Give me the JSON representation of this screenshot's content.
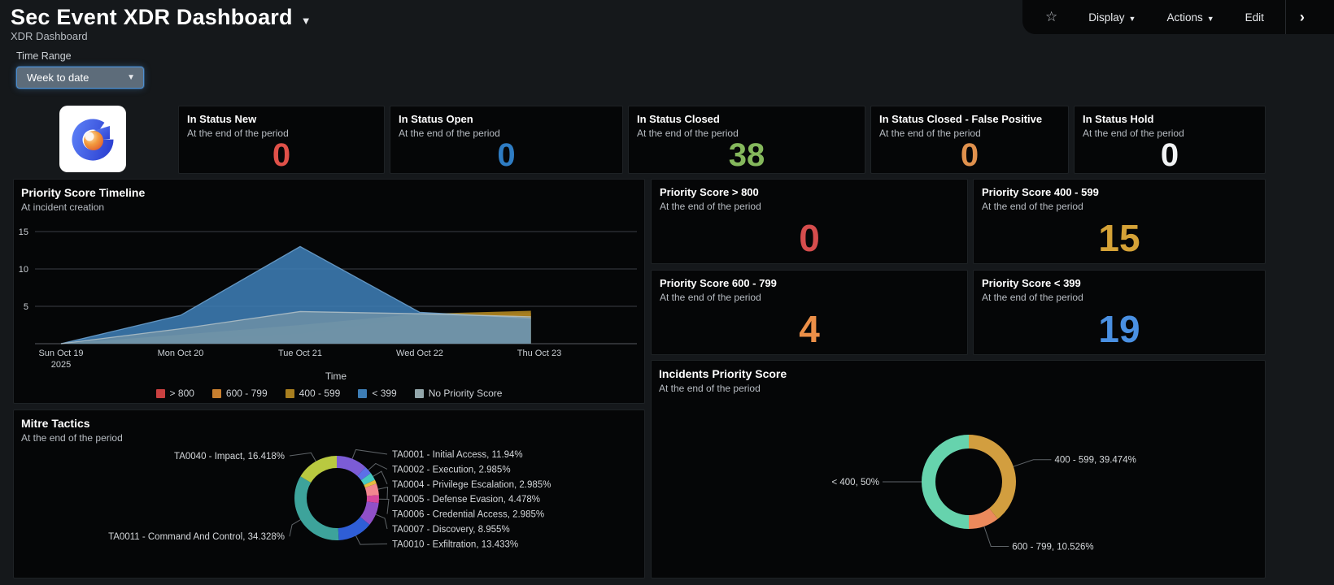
{
  "header": {
    "title": "Sec Event XDR Dashboard",
    "subtitle": "XDR Dashboard",
    "toolbar": {
      "display": "Display",
      "actions": "Actions",
      "edit": "Edit"
    }
  },
  "filters": {
    "time_range_label": "Time Range",
    "time_range_value": "Week to date"
  },
  "colors": {
    "accent_blue": "#4e8fd0",
    "panel_bg": "#050607",
    "page_bg": "#15181b"
  },
  "status_cards": [
    {
      "title": "In Status New",
      "subtitle": "At the end of the period",
      "value": "0",
      "color": "#e05149"
    },
    {
      "title": "In Status Open",
      "subtitle": "At the end of the period",
      "value": "0",
      "color": "#2e7cc3"
    },
    {
      "title": "In Status Closed",
      "subtitle": "At the end of the period",
      "value": "38",
      "color": "#85b85c"
    },
    {
      "title": "In Status Closed - False Positive",
      "subtitle": "At the end of the period",
      "value": "0",
      "color": "#e0914d"
    },
    {
      "title": "In Status Hold",
      "subtitle": "At the end of the period",
      "value": "0",
      "color": "#f1f3f4"
    }
  ],
  "priority_cards": [
    {
      "title": "Priority Score > 800",
      "subtitle": "At the end of the period",
      "value": "0",
      "color": "#d64d4d"
    },
    {
      "title": "Priority Score 400 - 599",
      "subtitle": "At the end of the period",
      "value": "15",
      "color": "#d5a237"
    },
    {
      "title": "Priority Score 600 - 799",
      "subtitle": "At the end of the period",
      "value": "4",
      "color": "#ec8f48"
    },
    {
      "title": "Priority Score < 399",
      "subtitle": "At the end of the period",
      "value": "19",
      "color": "#4a90e2"
    }
  ],
  "chart_data": [
    {
      "type": "area",
      "title": "Priority Score Timeline",
      "subtitle": "At incident creation",
      "xlabel": "Time",
      "x_ticks": [
        "Sun Oct 19",
        "Mon Oct 20",
        "Tue Oct 21",
        "Wed Oct 22",
        "Thu Oct 23"
      ],
      "x_tick_sub": "2025",
      "y_ticks": [
        5,
        10,
        15
      ],
      "ylim": [
        0,
        16
      ],
      "grid": true,
      "legend_position": "bottom",
      "series": [
        {
          "name": "> 800",
          "color": "#c94040",
          "fill_opacity": 0.9,
          "stroke": "",
          "points": [
            [
              0,
              0
            ],
            [
              1,
              0
            ],
            [
              2,
              0
            ],
            [
              3,
              0
            ],
            [
              3.93,
              0
            ]
          ]
        },
        {
          "name": "600 - 799",
          "color": "#c87f2f",
          "fill_opacity": 0.95,
          "stroke": "",
          "points": [
            [
              0,
              0
            ],
            [
              1,
              0.6
            ],
            [
              2,
              1.3
            ],
            [
              3,
              3.6
            ],
            [
              3.93,
              4.1
            ]
          ]
        },
        {
          "name": "400 - 599",
          "color": "#a87f1f",
          "fill_opacity": 0.95,
          "stroke": "",
          "points": [
            [
              0,
              0
            ],
            [
              1,
              1.2
            ],
            [
              2,
              2.5
            ],
            [
              3,
              4.0
            ],
            [
              3.93,
              4.4
            ]
          ]
        },
        {
          "name": "< 399",
          "color": "#3d7db5",
          "fill_opacity": 0.88,
          "stroke": "#74aad8",
          "points": [
            [
              0,
              0
            ],
            [
              1,
              3.8
            ],
            [
              2,
              13
            ],
            [
              3,
              4.2
            ],
            [
              3.93,
              3.4
            ]
          ]
        },
        {
          "name": "No Priority Score",
          "color": "#93a7ab",
          "fill_opacity": 0.5,
          "stroke": "#b9c6c9",
          "points": [
            [
              0,
              0
            ],
            [
              1,
              2.0
            ],
            [
              2,
              4.3
            ],
            [
              3,
              4.0
            ],
            [
              3.93,
              3.6
            ]
          ]
        }
      ]
    },
    {
      "type": "donut",
      "title": "Incidents Priority Score",
      "subtitle": "At the end of the period",
      "label_layout": "radial",
      "slices": [
        {
          "label": "400 - 599, 39.474%",
          "value": 39.474,
          "color": "#d29e3f"
        },
        {
          "label": "600 - 799, 10.526%",
          "value": 10.526,
          "color": "#ec8a5c"
        },
        {
          "label": "< 400, 50%",
          "value": 50,
          "color": "#66d3ad"
        }
      ]
    },
    {
      "type": "donut",
      "title": "Mitre Tactics",
      "subtitle": "At the end of the period",
      "label_layout": "stack",
      "slices": [
        {
          "label": "TA0001 - Initial Access, 11.94%",
          "value": 11.94,
          "color": "#7c5cd6"
        },
        {
          "label": "TA0002 - Execution, 2.985%",
          "value": 2.985,
          "color": "#5d6fe8"
        },
        {
          "label": "TA0004 - Privilege Escalation, 2.985%",
          "value": 2.985,
          "color": "#46c8c0"
        },
        {
          "label": "",
          "value": 1.493,
          "color": "#e6bc3f"
        },
        {
          "label": "TA0005 - Defense Evasion, 4.478%",
          "value": 4.478,
          "color": "#f2878f"
        },
        {
          "label": "TA0006 - Credential Access, 2.985%",
          "value": 2.985,
          "color": "#d6479c"
        },
        {
          "label": "TA0007 - Discovery, 8.955%",
          "value": 8.955,
          "color": "#9050c8"
        },
        {
          "label": "TA0010 - Exfiltration, 13.433%",
          "value": 13.433,
          "color": "#2f5ed6"
        },
        {
          "label": "TA0011 - Command And Control, 34.328%",
          "value": 34.328,
          "color": "#3da39b"
        },
        {
          "label": "TA0040 - Impact, 16.418%",
          "value": 16.418,
          "color": "#b9c940"
        }
      ]
    }
  ]
}
